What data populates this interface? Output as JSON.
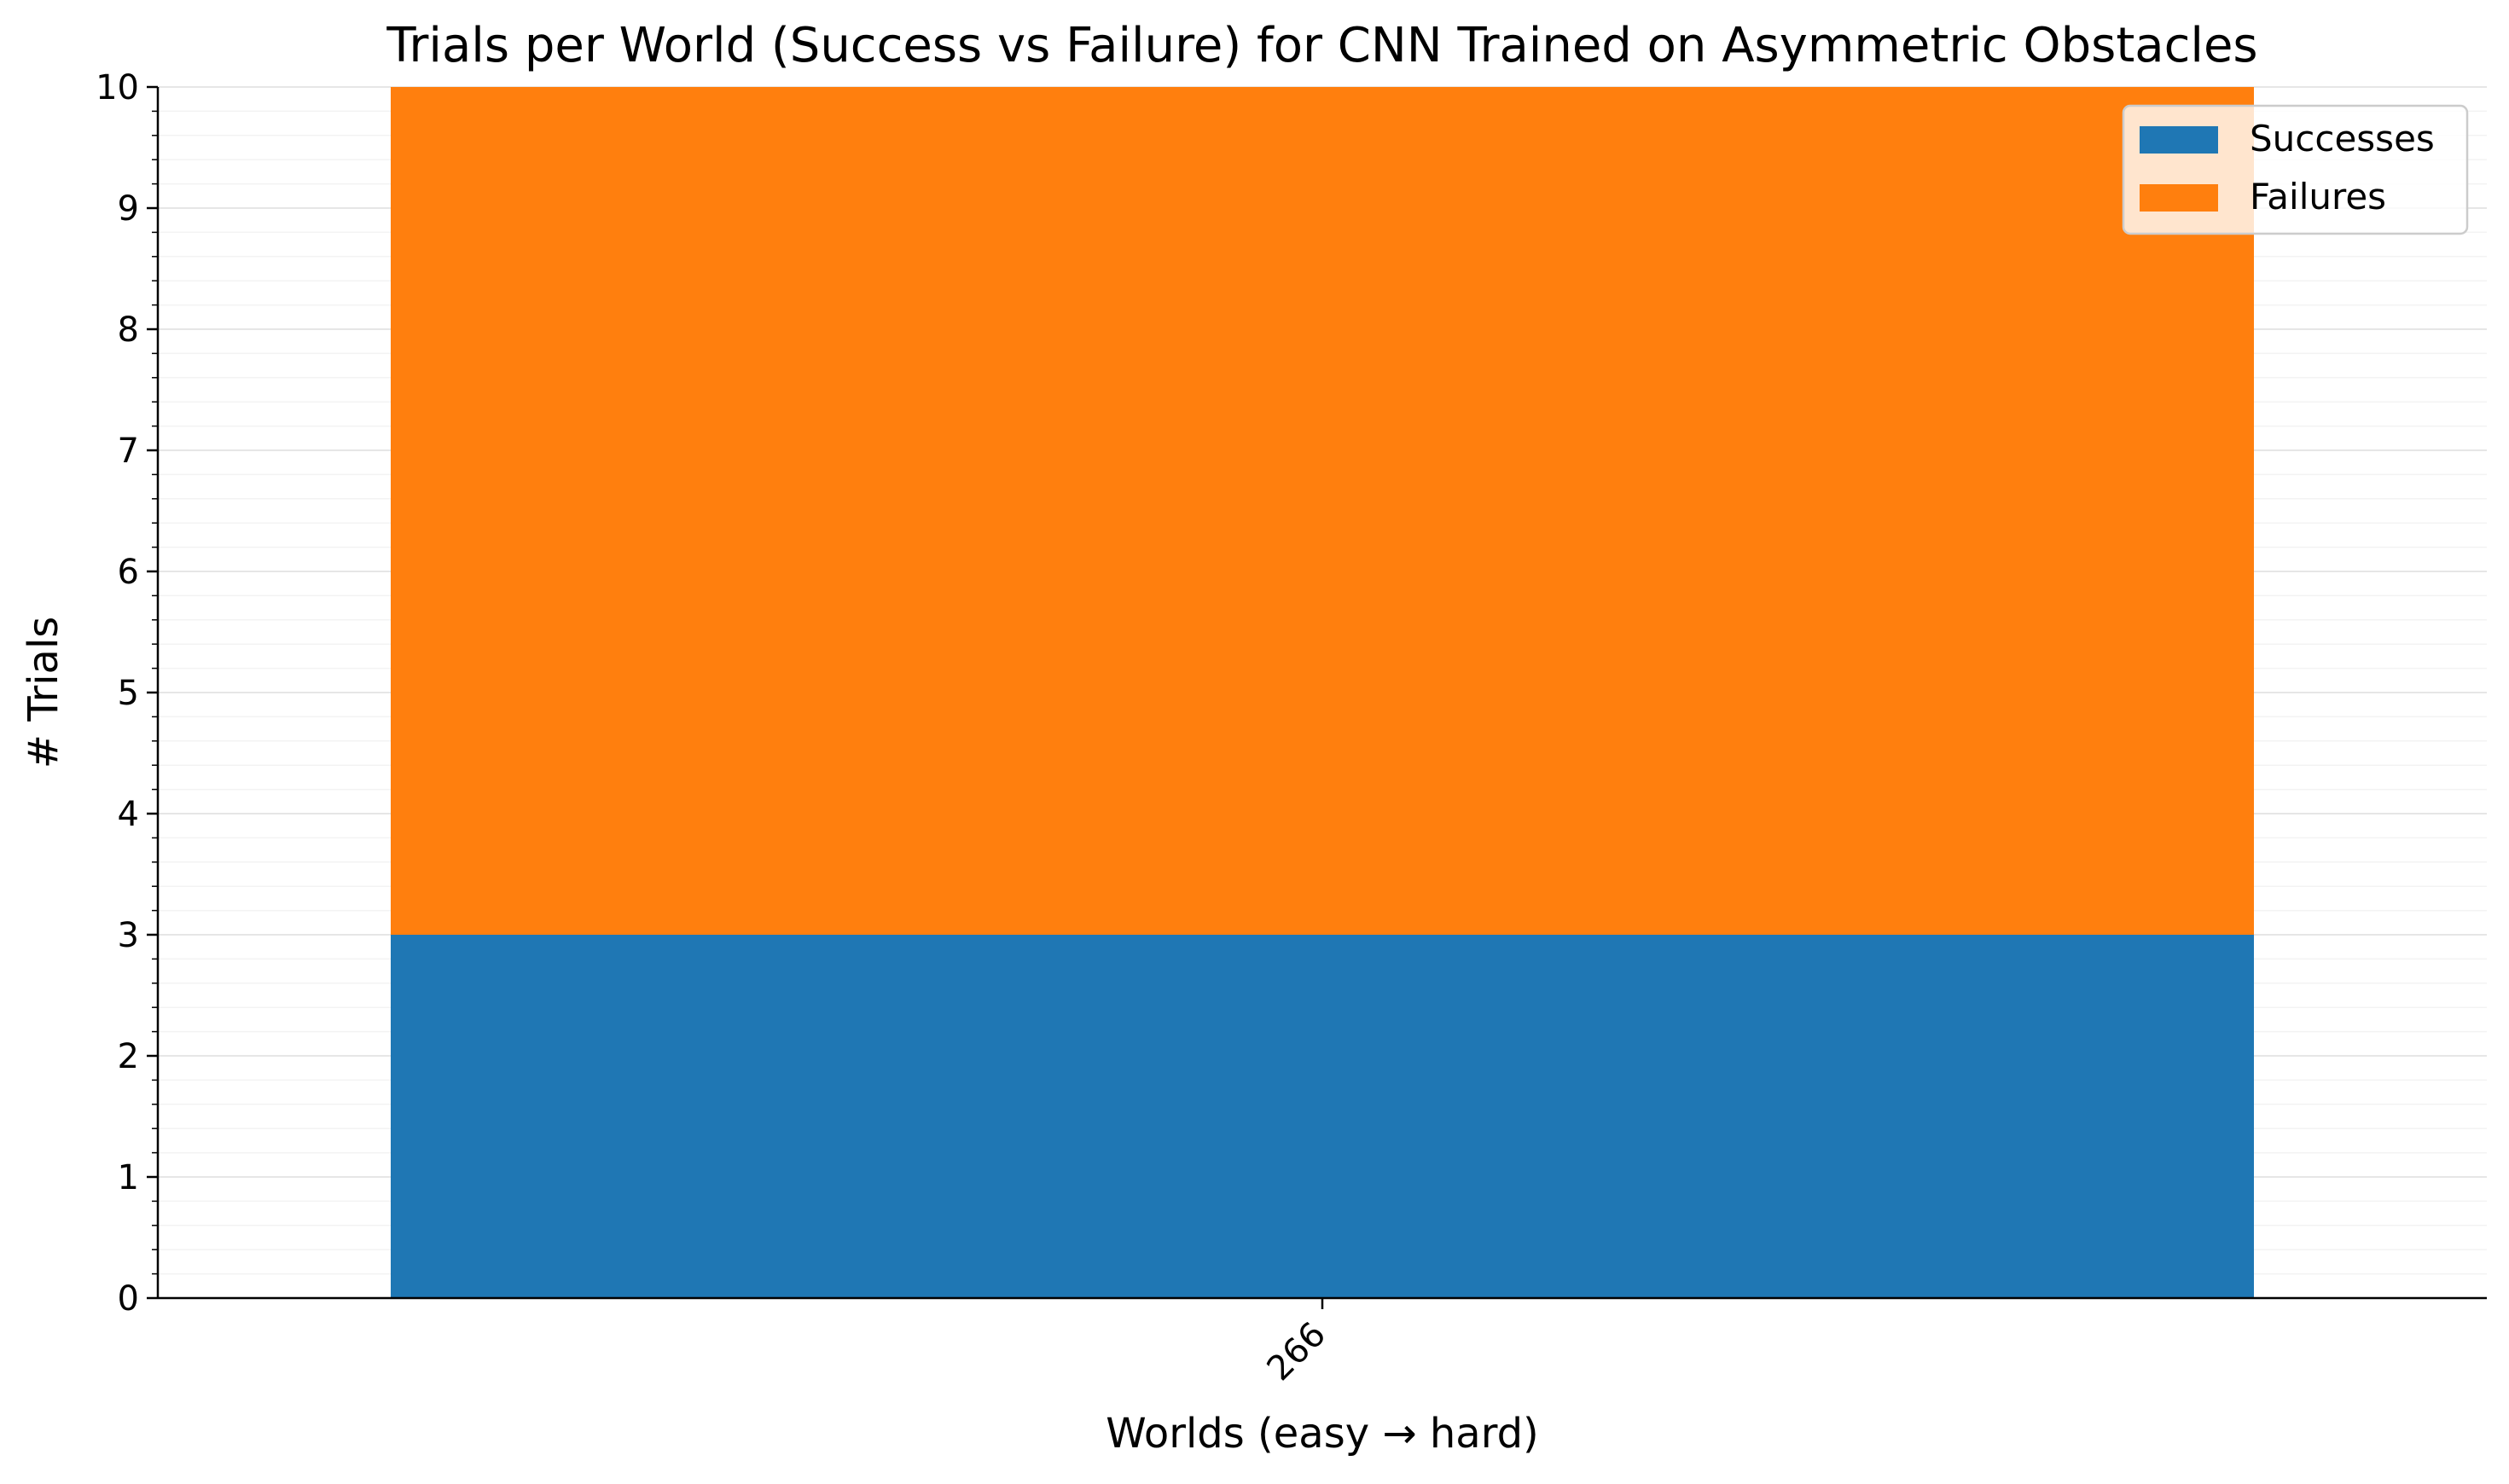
{
  "chart_data": {
    "type": "bar",
    "stacked": true,
    "title": "Trials per World (Success vs Failure) for CNN Trained on Asymmetric Obstacles",
    "xlabel": "Worlds (easy → hard)",
    "ylabel": "# Trials",
    "categories": [
      "266"
    ],
    "series": [
      {
        "name": "Successes",
        "values": [
          3
        ],
        "color": "#1f77b4"
      },
      {
        "name": "Failures",
        "values": [
          7
        ],
        "color": "#ff7f0e"
      }
    ],
    "ylim": [
      0,
      10
    ],
    "yticks": [
      "0",
      "1",
      "2",
      "3",
      "4",
      "5",
      "6",
      "7",
      "8",
      "9",
      "10"
    ],
    "grid": "horizontal, major and minor",
    "legend": {
      "position": "top-right",
      "entries": [
        "Successes",
        "Failures"
      ]
    },
    "xtick_rotation_deg": -45
  }
}
